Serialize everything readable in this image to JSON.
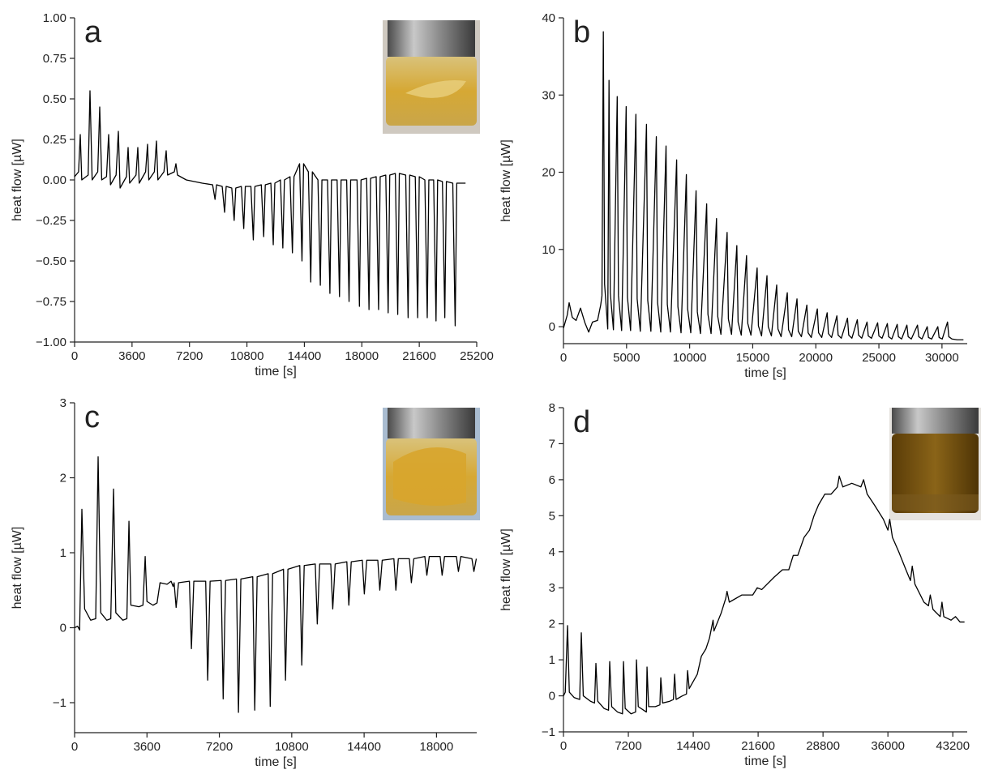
{
  "chart_data": [
    {
      "type": "line",
      "label": "a",
      "x_label": "time [s]",
      "y_label": "heat flow [µW]",
      "color": "#000000",
      "xlim": [
        0,
        25200
      ],
      "xticks": [
        0,
        3600,
        7200,
        10800,
        14400,
        18000,
        21600,
        25200
      ],
      "ylim": [
        -1,
        1
      ],
      "yticks": [
        {
          "value": -1,
          "label": "−1.00"
        },
        {
          "value": -0.75,
          "label": "−0.75"
        },
        {
          "value": -0.5,
          "label": "−0.50"
        },
        {
          "value": -0.25,
          "label": "−0.25"
        },
        {
          "value": 0,
          "label": "0.00"
        },
        {
          "value": 0.25,
          "label": "0.25"
        },
        {
          "value": 0.5,
          "label": "0.50"
        },
        {
          "value": 0.75,
          "label": "0.75"
        },
        {
          "value": 1,
          "label": "1.00"
        }
      ],
      "x": [
        0,
        250,
        356,
        450,
        850,
        965,
        1100,
        1450,
        1575,
        1700,
        2000,
        2134,
        2250,
        2600,
        2743,
        2850,
        3250,
        3353,
        3450,
        3850,
        3962,
        4050,
        4450,
        4572,
        4650,
        5000,
        5131,
        5220,
        5600,
        5740,
        5830,
        6250,
        6350,
        6450,
        7000,
        8000,
        8650,
        8800,
        8900,
        9250,
        9400,
        9500,
        9850,
        10000,
        10100,
        10450,
        10600,
        10700,
        11050,
        11200,
        11300,
        11700,
        11850,
        11950,
        12300,
        12450,
        12550,
        12900,
        13050,
        13150,
        13500,
        13650,
        13750,
        14100,
        14250,
        14350,
        14650,
        14800,
        14900,
        15250,
        15400,
        15500,
        15850,
        16000,
        16100,
        16450,
        16600,
        16700,
        17050,
        17200,
        17300,
        17700,
        17850,
        17950,
        18300,
        18450,
        18550,
        18900,
        19050,
        19150,
        19500,
        19650,
        19750,
        20100,
        20250,
        20350,
        20750,
        20900,
        21000,
        21350,
        21500,
        21600,
        21950,
        22100,
        22200,
        22500,
        22650,
        22750,
        23050,
        23200,
        23300,
        23700,
        23850,
        23950,
        24500
      ],
      "values": [
        0.02,
        0.05,
        0.28,
        0.0,
        0.03,
        0.55,
        0.0,
        0.05,
        0.45,
        0.0,
        0.02,
        0.28,
        -0.03,
        0.03,
        0.3,
        -0.05,
        0.02,
        0.2,
        -0.02,
        0.03,
        0.2,
        -0.02,
        0.05,
        0.22,
        0.0,
        0.05,
        0.24,
        0.0,
        0.05,
        0.18,
        0.03,
        0.05,
        0.1,
        0.03,
        0.0,
        -0.02,
        -0.03,
        -0.12,
        -0.03,
        -0.04,
        -0.2,
        -0.04,
        -0.05,
        -0.25,
        -0.05,
        -0.04,
        -0.3,
        -0.04,
        -0.04,
        -0.37,
        -0.04,
        -0.03,
        -0.35,
        -0.03,
        -0.02,
        -0.4,
        -0.02,
        0.0,
        -0.42,
        0.0,
        0.02,
        -0.45,
        0.02,
        0.1,
        -0.5,
        0.1,
        0.05,
        -0.63,
        0.05,
        0.0,
        -0.65,
        0.0,
        0.0,
        -0.7,
        0.0,
        0.0,
        -0.72,
        0.0,
        0.0,
        -0.75,
        0.0,
        0.0,
        -0.78,
        0.0,
        0.01,
        -0.8,
        0.01,
        0.02,
        -0.8,
        0.02,
        0.03,
        -0.82,
        0.03,
        0.04,
        -0.83,
        0.04,
        0.03,
        -0.85,
        0.03,
        0.02,
        -0.85,
        0.02,
        0.0,
        -0.85,
        0.0,
        0.0,
        -0.87,
        0.0,
        -0.01,
        -0.85,
        -0.01,
        -0.02,
        -0.9,
        -0.02,
        -0.02
      ]
    },
    {
      "type": "line",
      "label": "b",
      "x_label": "time [s]",
      "y_label": "heat flow [µW]",
      "color": "#000000",
      "xlim": [
        0,
        32000
      ],
      "xticks": [
        0,
        5000,
        10000,
        15000,
        20000,
        25000,
        30000
      ],
      "ylim": [
        -2.2,
        40
      ],
      "yticks": [
        0,
        10,
        20,
        30,
        40
      ],
      "x": [
        0,
        300,
        450,
        700,
        1000,
        1350,
        1700,
        2000,
        2300,
        2700,
        2950,
        3050,
        3160,
        3260,
        3510,
        3610,
        3710,
        3960,
        4260,
        4360,
        4610,
        4970,
        5070,
        5320,
        5740,
        5840,
        6090,
        6580,
        6680,
        6930,
        7360,
        7460,
        7710,
        8130,
        8230,
        8480,
        8970,
        9070,
        9320,
        9740,
        9840,
        10090,
        10510,
        10610,
        10860,
        11350,
        11450,
        11700,
        12130,
        12230,
        12480,
        12970,
        13070,
        13320,
        13740,
        13840,
        14090,
        14510,
        14610,
        14860,
        15350,
        15450,
        15700,
        16130,
        16230,
        16480,
        16900,
        17000,
        17250,
        17740,
        17840,
        18090,
        18510,
        18610,
        18860,
        19290,
        19390,
        19640,
        20120,
        20220,
        20470,
        20900,
        21000,
        21250,
        21670,
        21770,
        22020,
        22510,
        22610,
        22860,
        23290,
        23390,
        23640,
        24060,
        24160,
        24410,
        24900,
        25000,
        25250,
        25670,
        25770,
        26020,
        26450,
        26550,
        26800,
        27220,
        27320,
        27570,
        28060,
        28160,
        28410,
        28830,
        28930,
        29180,
        29670,
        29770,
        30020,
        30440,
        30540,
        30790,
        31200,
        31700
      ],
      "values": [
        -0.2,
        1.5,
        3.1,
        1.2,
        0.8,
        2.4,
        0.5,
        -0.7,
        0.6,
        0.8,
        2.8,
        4,
        38.2,
        5.5,
        -0.3,
        31.9,
        4.4,
        -0.4,
        29.8,
        4.0,
        -0.5,
        28.5,
        3.8,
        -0.5,
        27.5,
        3.6,
        -0.6,
        26.2,
        3.4,
        -0.6,
        24.6,
        3.1,
        -0.7,
        23.4,
        2.9,
        -0.7,
        21.6,
        2.6,
        -0.8,
        19.7,
        2.3,
        -0.8,
        17.6,
        1.9,
        -0.9,
        15.9,
        1.6,
        -0.9,
        14.0,
        1.3,
        -1.0,
        12.2,
        1.0,
        -1.0,
        10.5,
        0.6,
        -1.1,
        9.2,
        0.4,
        -1.1,
        7.6,
        0.1,
        -1.2,
        6.6,
        0.0,
        -1.2,
        5.4,
        -0.3,
        -1.3,
        4.4,
        -0.4,
        -1.3,
        3.6,
        -0.6,
        -1.3,
        2.8,
        -0.8,
        -1.4,
        2.3,
        -0.8,
        -1.4,
        1.8,
        -0.9,
        -1.4,
        1.4,
        -1.1,
        -1.5,
        1.1,
        -1.1,
        -1.5,
        0.9,
        -1.1,
        -1.5,
        0.6,
        -1.2,
        -1.5,
        0.5,
        -1.2,
        -1.5,
        0.4,
        -1.3,
        -1.6,
        0.3,
        -1.3,
        -1.6,
        0.2,
        -1.3,
        -1.6,
        0.2,
        -1.3,
        -1.6,
        0.0,
        -1.4,
        -1.6,
        0.0,
        -1.4,
        -1.6,
        0.6,
        -1.3,
        -1.6,
        -1.7,
        -1.7
      ]
    },
    {
      "type": "line",
      "label": "c",
      "x_label": "time [s]",
      "y_label": "heat flow [µW]",
      "color": "#000000",
      "xlim": [
        0,
        20000
      ],
      "xticks": [
        0,
        3600,
        7200,
        10800,
        14400,
        18000
      ],
      "ylim": [
        -1.4,
        3
      ],
      "yticks": [
        {
          "value": -1,
          "label": "−1"
        },
        0,
        1,
        2,
        3
      ],
      "x": [
        0,
        150,
        250,
        363,
        500,
        800,
        1050,
        1170,
        1300,
        1600,
        1800,
        1937,
        2050,
        2400,
        2600,
        2704,
        2800,
        3200,
        3400,
        3511,
        3600,
        3900,
        4100,
        4250,
        4600,
        4800,
        4900,
        4950,
        5050,
        5170,
        5710,
        5810,
        5930,
        6520,
        6620,
        6740,
        7290,
        7390,
        7510,
        8050,
        8150,
        8270,
        8860,
        8960,
        9080,
        9630,
        9730,
        9850,
        10390,
        10490,
        10610,
        11200,
        11300,
        11420,
        11970,
        12070,
        12190,
        12740,
        12840,
        12960,
        13540,
        13640,
        13760,
        14310,
        14410,
        14530,
        15080,
        15180,
        15300,
        15880,
        15980,
        16100,
        16650,
        16750,
        16870,
        17420,
        17520,
        17640,
        18180,
        18280,
        18400,
        18990,
        19090,
        19210,
        19760,
        19860,
        19980
      ],
      "values": [
        0,
        0.02,
        -0.03,
        1.58,
        0.25,
        0.1,
        0.12,
        2.28,
        0.2,
        0.1,
        0.12,
        1.85,
        0.2,
        0.1,
        0.12,
        1.42,
        0.3,
        0.28,
        0.3,
        0.95,
        0.35,
        0.3,
        0.33,
        0.6,
        0.58,
        0.62,
        0.55,
        0.6,
        0.27,
        0.6,
        0.62,
        -0.28,
        0.62,
        0.62,
        -0.7,
        0.62,
        0.63,
        -0.95,
        0.63,
        0.65,
        -1.13,
        0.65,
        0.68,
        -1.1,
        0.68,
        0.72,
        -1.05,
        0.72,
        0.78,
        -0.7,
        0.78,
        0.83,
        -0.5,
        0.83,
        0.85,
        0.05,
        0.85,
        0.85,
        0.25,
        0.85,
        0.88,
        0.3,
        0.88,
        0.9,
        0.45,
        0.9,
        0.9,
        0.5,
        0.9,
        0.92,
        0.5,
        0.92,
        0.92,
        0.6,
        0.92,
        0.95,
        0.7,
        0.95,
        0.95,
        0.7,
        0.95,
        0.95,
        0.75,
        0.95,
        0.92,
        0.75,
        0.92
      ]
    },
    {
      "type": "line",
      "label": "d",
      "x_label": "time [s]",
      "y_label": "heat flow [µW]",
      "color": "#000000",
      "xlim": [
        0,
        44800
      ],
      "xticks": [
        0,
        7200,
        14400,
        21600,
        28800,
        36000,
        43200
      ],
      "ylim": [
        -1,
        8
      ],
      "yticks": [
        {
          "value": -1,
          "label": "−1"
        },
        0,
        1,
        2,
        3,
        4,
        5,
        6,
        7,
        8
      ],
      "x": [
        0,
        200,
        450,
        650,
        1200,
        1800,
        1980,
        2200,
        3000,
        3450,
        3600,
        3800,
        4500,
        5000,
        5130,
        5350,
        6000,
        6550,
        6660,
        6850,
        7500,
        8000,
        8100,
        8300,
        8900,
        9200,
        9270,
        9450,
        10200,
        10700,
        10800,
        11000,
        11800,
        12200,
        12330,
        12500,
        13200,
        13650,
        13770,
        13950,
        14850,
        15300,
        15800,
        16200,
        16600,
        16700,
        17500,
        18000,
        18150,
        18400,
        19800,
        21000,
        21500,
        22000,
        23400,
        24300,
        25000,
        25500,
        26000,
        26700,
        27300,
        27800,
        28300,
        29000,
        29700,
        30400,
        30600,
        31000,
        32000,
        33000,
        33300,
        33700,
        34500,
        35500,
        36000,
        36200,
        36500,
        37200,
        38000,
        38500,
        38700,
        39000,
        40000,
        40500,
        40700,
        41000,
        41800,
        42000,
        42200,
        43000,
        43500,
        44000,
        44500
      ],
      "values": [
        0,
        0.1,
        1.95,
        0.1,
        -0.05,
        -0.1,
        1.75,
        0.0,
        -0.15,
        -0.2,
        0.9,
        -0.15,
        -0.35,
        -0.4,
        0.95,
        -0.3,
        -0.45,
        -0.5,
        0.95,
        -0.35,
        -0.5,
        -0.45,
        1.0,
        -0.3,
        -0.4,
        -0.45,
        0.8,
        -0.3,
        -0.3,
        -0.25,
        0.5,
        -0.2,
        -0.15,
        -0.1,
        0.6,
        -0.1,
        0.0,
        0.05,
        0.7,
        0.2,
        0.6,
        1.1,
        1.3,
        1.6,
        2.1,
        1.8,
        2.3,
        2.7,
        2.9,
        2.6,
        2.8,
        2.8,
        3.0,
        2.95,
        3.3,
        3.5,
        3.5,
        3.9,
        3.9,
        4.4,
        4.6,
        5.0,
        5.3,
        5.6,
        5.6,
        5.8,
        6.1,
        5.8,
        5.9,
        5.8,
        6.0,
        5.6,
        5.3,
        4.9,
        4.6,
        4.9,
        4.4,
        4.0,
        3.5,
        3.2,
        3.6,
        3.1,
        2.6,
        2.5,
        2.8,
        2.4,
        2.2,
        2.6,
        2.2,
        2.1,
        2.2,
        2.05,
        2.05
      ]
    }
  ]
}
